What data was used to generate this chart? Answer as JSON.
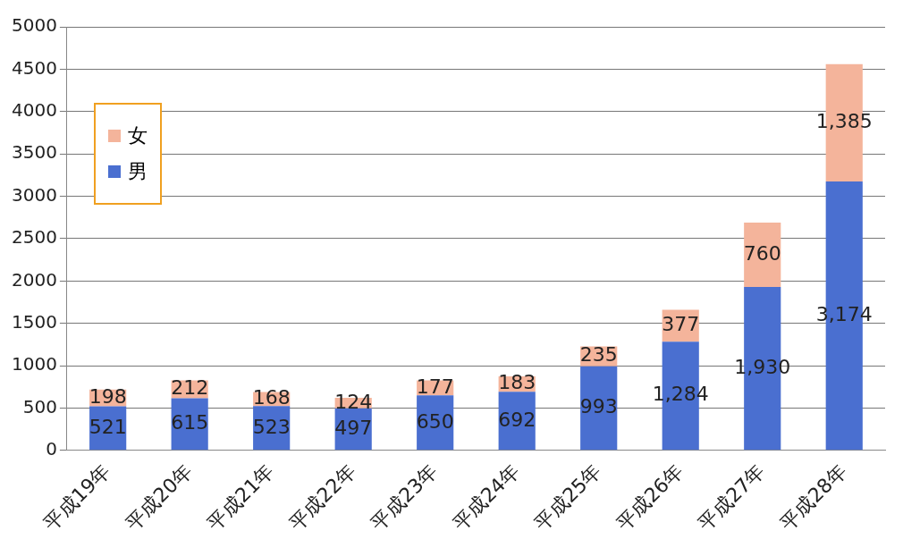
{
  "chart_data": {
    "type": "bar",
    "stacked": true,
    "categories": [
      "平成19年",
      "平成20年",
      "平成21年",
      "平成22年",
      "平成23年",
      "平成24年",
      "平成25年",
      "平成26年",
      "平成27年",
      "平成28年"
    ],
    "series": [
      {
        "name": "男",
        "color": "#4a6fd0",
        "values": [
          521,
          615,
          523,
          497,
          650,
          692,
          993,
          1284,
          1930,
          3174
        ],
        "value_labels": [
          "521",
          "615",
          "523",
          "497",
          "650",
          "692",
          "993",
          "1,284",
          "1,930",
          "3,174"
        ]
      },
      {
        "name": "女",
        "color": "#f4b49b",
        "values": [
          198,
          212,
          168,
          124,
          177,
          183,
          235,
          377,
          760,
          1385
        ],
        "value_labels": [
          "198",
          "212",
          "168",
          "124",
          "177",
          "183",
          "235",
          "377",
          "760",
          "1,385"
        ]
      }
    ],
    "ylim": [
      0,
      5000
    ],
    "yticks": [
      0,
      500,
      1000,
      1500,
      2000,
      2500,
      3000,
      3500,
      4000,
      4500,
      5000
    ],
    "grid": "y",
    "legend": "top left"
  }
}
